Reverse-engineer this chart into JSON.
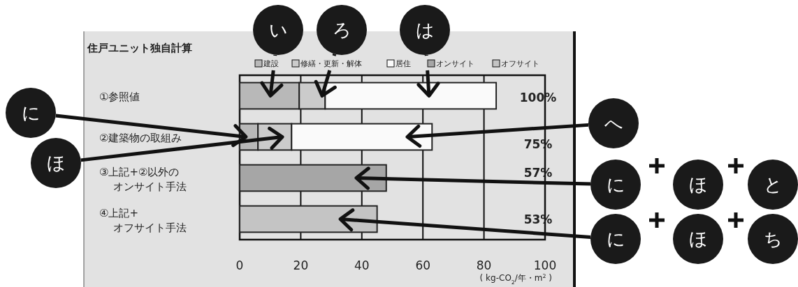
{
  "chart_data": {
    "type": "bar",
    "orientation": "horizontal",
    "stacked": true,
    "title": "住戸ユニット独自計算",
    "categories": [
      "①参照値",
      "②建築物の取組み",
      "③上記+②以外のオンサイト手法",
      "④上記+オフサイト手法"
    ],
    "series": [
      {
        "name": "建設",
        "color": "#b8b8b8",
        "values": [
          19.5,
          6,
          null,
          null
        ]
      },
      {
        "name": "修繕・更新・解体",
        "color": "#cbcbcb",
        "values": [
          8.5,
          11,
          null,
          null
        ]
      },
      {
        "name": "居住",
        "color": "#fafafa",
        "values": [
          56,
          46,
          null,
          null
        ]
      },
      {
        "name": "オンサイト",
        "color": "#a6a6a6",
        "values": [
          null,
          null,
          48,
          null
        ]
      },
      {
        "name": "オフサイト",
        "color": "#c4c4c4",
        "values": [
          null,
          null,
          null,
          45
        ]
      }
    ],
    "xlim": [
      0,
      100
    ],
    "xticks": [
      0,
      20,
      40,
      60,
      80,
      100
    ],
    "xlabel": "( kg-CO$_{2}$/年・m$^{2}$ )",
    "grid": "x",
    "legend": "top",
    "annotations": [
      "い",
      "ろ",
      "は",
      "に",
      "ほ",
      "へ",
      "に",
      "ほ",
      "と",
      "に",
      "ほ",
      "ち",
      "100%",
      "75%",
      "57%",
      "53%"
    ]
  }
}
